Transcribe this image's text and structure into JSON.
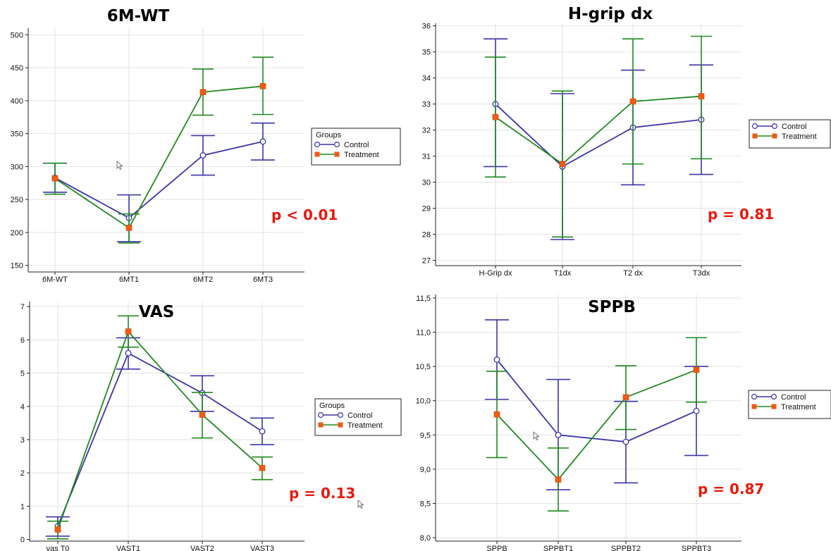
{
  "colors": {
    "control": "#3c34a8",
    "treatment": "#1f8a1f",
    "treatment_marker": "#f25a12",
    "pvalue": "#e8180c"
  },
  "chart_data": [
    {
      "id": "6mwt",
      "type": "line",
      "title": "6M-WT",
      "categories": [
        "6M-WT",
        "6MT1",
        "6MT2",
        "6MT3"
      ],
      "ylim": [
        140,
        510
      ],
      "yticks": [
        150,
        200,
        250,
        300,
        350,
        400,
        450,
        500
      ],
      "ytick_labels": [
        "150",
        "200",
        "250",
        "300",
        "350",
        "400",
        "450",
        "500"
      ],
      "grid": true,
      "legend_title": "Groups",
      "series": [
        {
          "name": "Control",
          "values": [
            283,
            222,
            317,
            338
          ],
          "err_low": [
            261,
            186,
            287,
            310
          ],
          "err_high": [
            305,
            257,
            347,
            366
          ]
        },
        {
          "name": "Treatment",
          "values": [
            282,
            207,
            413,
            422
          ],
          "err_low": [
            258,
            184,
            378,
            379
          ],
          "err_high": [
            305,
            228,
            448,
            466
          ]
        }
      ],
      "annotation": "p < 0.01"
    },
    {
      "id": "hgrip",
      "type": "line",
      "title": "H-grip dx",
      "categories": [
        "H-Grip dx",
        "T1dx",
        "T2 dx",
        "T3dx"
      ],
      "ylim": [
        26.8,
        36.1
      ],
      "yticks": [
        27,
        28,
        29,
        30,
        31,
        32,
        33,
        34,
        35,
        36
      ],
      "ytick_labels": [
        "27",
        "28",
        "29",
        "30",
        "31",
        "32",
        "33",
        "34",
        "35",
        "36"
      ],
      "grid": true,
      "legend_title": "",
      "series": [
        {
          "name": "Control",
          "values": [
            33.0,
            30.6,
            32.1,
            32.4
          ],
          "err_low": [
            30.6,
            27.8,
            29.9,
            30.3
          ],
          "err_high": [
            35.5,
            33.4,
            34.3,
            34.5
          ]
        },
        {
          "name": "Treatment",
          "values": [
            32.5,
            30.7,
            33.1,
            33.3
          ],
          "err_low": [
            30.2,
            27.9,
            30.7,
            30.9
          ],
          "err_high": [
            34.8,
            33.5,
            35.5,
            35.6
          ]
        }
      ],
      "annotation": "p = 0.81"
    },
    {
      "id": "vas",
      "type": "line",
      "title": "VAS",
      "categories": [
        "vas T0",
        "VAST1",
        "VAST2",
        "VAST3"
      ],
      "ylim": [
        -0.05,
        7.15
      ],
      "yticks": [
        0,
        1,
        2,
        3,
        4,
        5,
        6,
        7
      ],
      "ytick_labels": [
        "0",
        "1",
        "2",
        "3",
        "4",
        "5",
        "6",
        "7"
      ],
      "grid": true,
      "legend_title": "Groups",
      "series": [
        {
          "name": "Control",
          "values": [
            0.4,
            5.6,
            4.4,
            3.25
          ],
          "err_low": [
            0.1,
            5.12,
            3.85,
            2.85
          ],
          "err_high": [
            0.68,
            6.06,
            4.92,
            3.65
          ]
        },
        {
          "name": "Treatment",
          "values": [
            0.3,
            6.25,
            3.75,
            2.15
          ],
          "err_low": [
            0.02,
            5.78,
            3.05,
            1.8
          ],
          "err_high": [
            0.55,
            6.72,
            4.42,
            2.48
          ]
        }
      ],
      "annotation": "p = 0.13"
    },
    {
      "id": "sppb",
      "type": "line",
      "title": "SPPB",
      "categories": [
        "SPPB",
        "SPPBT1",
        "SPPBT2",
        "SPPBT3"
      ],
      "ylim": [
        7.95,
        11.55
      ],
      "yticks": [
        8.0,
        8.5,
        9.0,
        9.5,
        10.0,
        10.5,
        11.0,
        11.5
      ],
      "ytick_labels": [
        "8,0",
        "8,5",
        "9,0",
        "9,5",
        "10,0",
        "10,5",
        "11,0",
        "11,5"
      ],
      "grid": true,
      "legend_title": "",
      "series": [
        {
          "name": "Control",
          "values": [
            10.6,
            9.5,
            9.4,
            9.85
          ],
          "err_low": [
            10.02,
            8.7,
            8.8,
            9.2
          ],
          "err_high": [
            11.18,
            10.31,
            9.99,
            10.5
          ]
        },
        {
          "name": "Treatment",
          "values": [
            9.8,
            8.85,
            10.05,
            10.45
          ],
          "err_low": [
            9.17,
            8.39,
            9.58,
            9.98
          ],
          "err_high": [
            10.43,
            9.31,
            10.51,
            10.92
          ]
        }
      ],
      "annotation": "p = 0.87"
    }
  ]
}
